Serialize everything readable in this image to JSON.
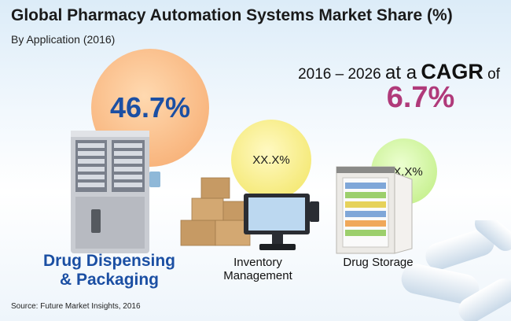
{
  "header": {
    "title": "Global Pharmacy Automation Systems Market Share (%)",
    "subtitle": "By Application (2016)"
  },
  "cagr": {
    "period": "2016 – 2026",
    "at_a": "at a",
    "cagr_word": "CAGR",
    "of": "of",
    "value": "6.7%"
  },
  "chart_data": {
    "type": "bubble",
    "title": "Global Pharmacy Automation Systems Market Share (%)",
    "subtitle": "By Application (2016)",
    "categories": [
      "Drug Dispensing & Packaging",
      "Inventory Management",
      "Drug Storage"
    ],
    "values": [
      46.7,
      null,
      null
    ],
    "value_labels": [
      "46.7%",
      "XX.X%",
      "XX.X%"
    ],
    "colors": [
      "#f8b47c",
      "#f4e872",
      "#c6f08e"
    ],
    "legend": "none",
    "grid": false
  },
  "labels": {
    "dispensing_line1": "Drug Dispensing",
    "dispensing_line2": "& Packaging",
    "inventory_line1": "Inventory",
    "inventory_line2": "Management",
    "storage": "Drug Storage"
  },
  "source": "Source: Future Market Insights, 2016",
  "icons": [
    "dispensing-machine-icon",
    "boxes-icon",
    "monitor-icon",
    "storage-cabinet-icon",
    "capsules-icon"
  ]
}
